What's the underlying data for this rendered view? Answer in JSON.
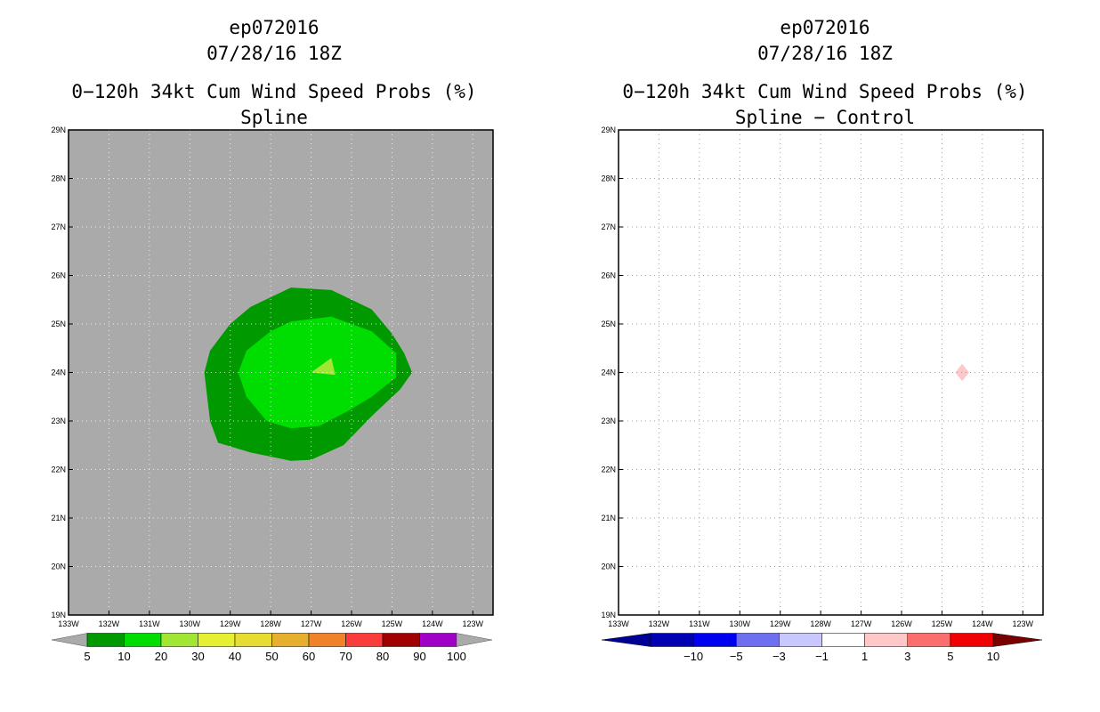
{
  "charts": [
    {
      "id": "left",
      "title_lines": [
        "ep072016",
        "07/28/16 18Z"
      ],
      "subtitle_lines": [
        "0−120h 34kt Cum Wind Speed Probs (%)",
        "Spline"
      ],
      "background_color": "#aaaaaa",
      "show_grid": true,
      "lon_ticks": [
        "133W",
        "132W",
        "131W",
        "130W",
        "129W",
        "128W",
        "127W",
        "126W",
        "125W",
        "124W",
        "123W"
      ],
      "lat_ticks": [
        "19N",
        "20N",
        "21N",
        "22N",
        "23N",
        "24N",
        "25N",
        "26N",
        "27N",
        "28N",
        "29N"
      ],
      "legend": {
        "type": "sequential",
        "labels": [
          "5",
          "10",
          "20",
          "30",
          "40",
          "50",
          "60",
          "70",
          "80",
          "90",
          "100"
        ],
        "colors": [
          "#009900",
          "#00dd00",
          "#a0e632",
          "#e6f032",
          "#e6dc32",
          "#e6af2d",
          "#f08228",
          "#fa3c3c",
          "#a00000",
          "#a000c8"
        ],
        "end_color": "#aaaaaa"
      },
      "contours": [
        {
          "level": "5-10",
          "color": "#009900",
          "points": [
            [
              -129.64,
              24.0
            ],
            [
              -129.5,
              24.45
            ],
            [
              -129.0,
              25.0
            ],
            [
              -128.5,
              25.35
            ],
            [
              -127.5,
              25.75
            ],
            [
              -126.5,
              25.7
            ],
            [
              -125.5,
              25.3
            ],
            [
              -125.0,
              24.8
            ],
            [
              -124.7,
              24.4
            ],
            [
              -124.5,
              24.0
            ],
            [
              -124.8,
              23.65
            ],
            [
              -125.5,
              23.1
            ],
            [
              -126.2,
              22.5
            ],
            [
              -127.0,
              22.2
            ],
            [
              -127.5,
              22.18
            ],
            [
              -128.5,
              22.35
            ],
            [
              -129.3,
              22.55
            ],
            [
              -129.5,
              23.0
            ]
          ]
        },
        {
          "level": "10-20",
          "color": "#00dd00",
          "points": [
            [
              -128.8,
              24.0
            ],
            [
              -128.6,
              24.45
            ],
            [
              -128.0,
              24.85
            ],
            [
              -127.5,
              25.05
            ],
            [
              -126.5,
              25.15
            ],
            [
              -125.5,
              24.85
            ],
            [
              -124.9,
              24.4
            ],
            [
              -124.9,
              23.9
            ],
            [
              -125.5,
              23.5
            ],
            [
              -126.1,
              23.2
            ],
            [
              -126.8,
              22.9
            ],
            [
              -127.5,
              22.85
            ],
            [
              -128.1,
              23.0
            ],
            [
              -128.6,
              23.5
            ]
          ]
        },
        {
          "level": "20-30",
          "color": "#a0e632",
          "points": [
            [
              -127.0,
              24.0
            ],
            [
              -126.5,
              24.3
            ],
            [
              -126.4,
              23.95
            ]
          ]
        }
      ]
    },
    {
      "id": "right",
      "title_lines": [
        "ep072016",
        "07/28/16 18Z"
      ],
      "subtitle_lines": [
        "0−120h 34kt Cum Wind Speed Probs (%)",
        "Spline − Control"
      ],
      "background_color": "#ffffff",
      "show_grid": true,
      "lon_ticks": [
        "133W",
        "132W",
        "131W",
        "130W",
        "129W",
        "128W",
        "127W",
        "126W",
        "125W",
        "124W",
        "123W"
      ],
      "lat_ticks": [
        "19N",
        "20N",
        "21N",
        "22N",
        "23N",
        "24N",
        "25N",
        "26N",
        "27N",
        "28N",
        "29N"
      ],
      "legend": {
        "type": "diverging",
        "labels": [
          "−10",
          "−5",
          "−3",
          "−1",
          "1",
          "3",
          "5",
          "10"
        ],
        "colors": [
          "#0000b4",
          "#0000f0",
          "#6e6ef0",
          "#c8c8ff",
          "#ffffff",
          "#ffc8c8",
          "#fa6e6e",
          "#f00000"
        ],
        "left_end_color": "#000096",
        "right_end_color": "#780000"
      },
      "contours": [
        {
          "level": "1-3",
          "color": "#ffc8c8",
          "points": [
            [
              -124.5,
              24.18
            ],
            [
              -124.33,
              24.0
            ],
            [
              -124.5,
              23.82
            ],
            [
              -124.67,
              24.0
            ]
          ]
        }
      ]
    }
  ]
}
